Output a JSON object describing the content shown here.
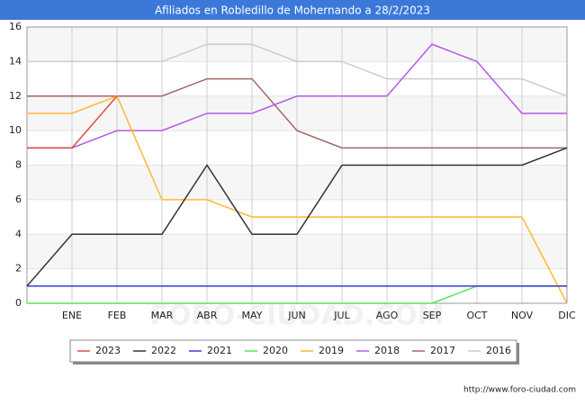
{
  "chart_data": {
    "type": "line",
    "title": "Afiliados en Robledillo de Mohernando a 28/2/2023",
    "categories": [
      null,
      "ENE",
      "FEB",
      "MAR",
      "ABR",
      "MAY",
      "JUN",
      "JUL",
      "AGO",
      "SEP",
      "OCT",
      "NOV",
      "DIC"
    ],
    "series": [
      {
        "name": "2023",
        "color": "#e04a4a",
        "values": [
          9,
          9,
          12,
          null,
          null,
          null,
          null,
          null,
          null,
          null,
          null,
          null,
          null
        ]
      },
      {
        "name": "2022",
        "color": "#333333",
        "values": [
          1,
          4,
          4,
          4,
          8,
          4,
          4,
          8,
          8,
          8,
          8,
          8,
          9
        ]
      },
      {
        "name": "2021",
        "color": "#3b3bd6",
        "values": [
          1,
          1,
          1,
          1,
          1,
          1,
          1,
          1,
          1,
          1,
          1,
          1,
          1
        ]
      },
      {
        "name": "2020",
        "color": "#4ee84e",
        "values": [
          0,
          0,
          0,
          0,
          0,
          0,
          0,
          0,
          0,
          0,
          1,
          1,
          1
        ]
      },
      {
        "name": "2019",
        "color": "#ffb733",
        "values": [
          11,
          11,
          12,
          6,
          6,
          5,
          5,
          5,
          5,
          5,
          5,
          5,
          0
        ]
      },
      {
        "name": "2018",
        "color": "#b65ae8",
        "values": [
          9,
          9,
          10,
          10,
          11,
          11,
          12,
          12,
          12,
          15,
          14,
          11,
          11
        ]
      },
      {
        "name": "2017",
        "color": "#a86464",
        "values": [
          12,
          12,
          12,
          12,
          13,
          13,
          10,
          9,
          9,
          9,
          9,
          9,
          9
        ]
      },
      {
        "name": "2016",
        "color": "#cccccc",
        "values": [
          14,
          14,
          14,
          14,
          15,
          15,
          14,
          14,
          13,
          13,
          13,
          13,
          12
        ]
      }
    ],
    "ylim": [
      0,
      16
    ],
    "yticks": [
      0,
      2,
      4,
      6,
      8,
      10,
      12,
      14,
      16
    ],
    "grid": true,
    "legend": "bottom",
    "watermark": "FORO-CIUDAD.COM",
    "source": "http://www.foro-ciudad.com"
  }
}
